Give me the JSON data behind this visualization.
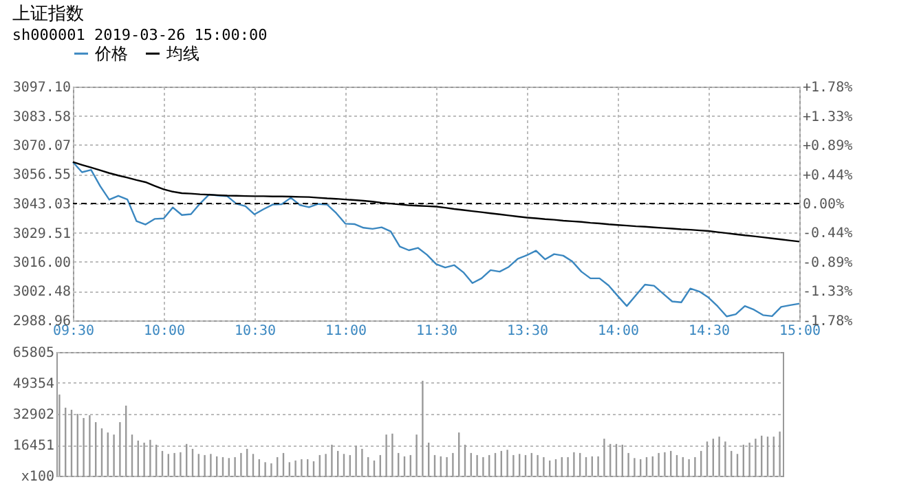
{
  "chart_data": [
    {
      "type": "line",
      "title": "上证指数",
      "subtitle": "sh000001",
      "annotations": [
        "2019-03-26 15:00:00"
      ],
      "categories": [
        "09:30",
        null,
        null,
        null,
        null,
        null,
        null,
        null,
        null,
        null,
        "10:00",
        null,
        null,
        null,
        null,
        null,
        null,
        null,
        null,
        null,
        "10:30",
        null,
        null,
        null,
        null,
        null,
        null,
        null,
        null,
        null,
        "11:00",
        null,
        null,
        null,
        null,
        null,
        null,
        null,
        null,
        null,
        "11:30",
        null,
        null,
        null,
        null,
        null,
        null,
        null,
        null,
        null,
        "13:30",
        null,
        null,
        null,
        null,
        null,
        null,
        null,
        null,
        null,
        "14:00",
        null,
        null,
        null,
        null,
        null,
        null,
        null,
        null,
        null,
        "14:30",
        null,
        null,
        null,
        null,
        null,
        null,
        null,
        null,
        null,
        "15:00"
      ],
      "ylim": [
        2988.96,
        3097.1
      ],
      "yticks": [
        {
          "value": 2988.96,
          "label": "2988.96"
        },
        {
          "value": 3002.48,
          "label": "3002.48"
        },
        {
          "value": 3016,
          "label": "3016.00"
        },
        {
          "value": 3029.51,
          "label": "3029.51"
        },
        {
          "value": 3043.03,
          "label": "3043.03"
        },
        {
          "value": 3056.55,
          "label": "3056.55"
        },
        {
          "value": 3070.07,
          "label": "3070.07"
        },
        {
          "value": 3083.58,
          "label": "3083.58"
        },
        {
          "value": 3097.1,
          "label": "3097.10"
        }
      ],
      "y2lim": [
        -1.78,
        1.78
      ],
      "y2ticks": [
        {
          "value": -1.78,
          "label": "-1.78%"
        },
        {
          "value": -1.33,
          "label": "-1.33%"
        },
        {
          "value": -0.89,
          "label": "-0.89%"
        },
        {
          "value": -0.44,
          "label": "-0.44%"
        },
        {
          "value": 0,
          "label": "0.00%"
        },
        {
          "value": 0.44,
          "label": "+0.44%"
        },
        {
          "value": 0.89,
          "label": "+0.89%"
        },
        {
          "value": 1.33,
          "label": "+1.33%"
        },
        {
          "value": 1.78,
          "label": "+1.78%"
        }
      ],
      "grid": true,
      "legend": "top",
      "ref_lines": [
        {
          "axis": "y",
          "value": 3043.03,
          "line_style": "dashed",
          "color": "#000000"
        }
      ],
      "series": [
        {
          "name": "价格",
          "color": "#3a87c0",
          "values": [
            3062.2,
            3057.5,
            3058.6,
            3051.1,
            3044.8,
            3046.6,
            3044.9,
            3034.9,
            3033.3,
            3035.9,
            3036.1,
            3041.2,
            3037.7,
            3038.1,
            3043.0,
            3047.2,
            3046.7,
            3046.4,
            3042.9,
            3041.8,
            3038.0,
            3040.4,
            3042.5,
            3042.7,
            3045.7,
            3042.3,
            3041.3,
            3042.8,
            3042.5,
            3038.6,
            3033.7,
            3033.5,
            3031.8,
            3031.3,
            3032.0,
            3030.1,
            3023.1,
            3021.4,
            3022.5,
            3019.3,
            3015.0,
            3013.4,
            3014.5,
            3011.2,
            3006.2,
            3008.4,
            3012.2,
            3011.5,
            3013.7,
            3017.5,
            3019.1,
            3021.2,
            3017.2,
            3019.6,
            3018.9,
            3016.2,
            3011.5,
            3008.4,
            3008.4,
            3005.1,
            3000.3,
            2995.6,
            3000.6,
            3005.5,
            3005.0,
            3001.3,
            2997.7,
            2997.3,
            3003.7,
            3002.3,
            2999.5,
            2995.5,
            2990.8,
            2991.8,
            2995.6,
            2993.9,
            2991.4,
            2990.9,
            2995.2,
            2996.0,
            2996.7
          ]
        },
        {
          "name": "均线",
          "color": "#000000",
          "values": [
            3062.2,
            3060.9,
            3059.7,
            3058.4,
            3057.1,
            3056.0,
            3055.0,
            3053.9,
            3052.9,
            3051.2,
            3049.6,
            3048.5,
            3047.8,
            3047.6,
            3047.3,
            3047.1,
            3046.9,
            3046.7,
            3046.6,
            3046.5,
            3046.4,
            3046.4,
            3046.3,
            3046.3,
            3046.2,
            3046.1,
            3046.0,
            3045.7,
            3045.4,
            3045.2,
            3044.9,
            3044.6,
            3044.3,
            3043.9,
            3043.4,
            3043.0,
            3042.6,
            3042.2,
            3042.0,
            3041.8,
            3041.6,
            3041.1,
            3040.5,
            3040.0,
            3039.5,
            3039.0,
            3038.5,
            3038.0,
            3037.5,
            3037.0,
            3036.5,
            3036.2,
            3035.8,
            3035.5,
            3035.1,
            3034.8,
            3034.5,
            3034.1,
            3033.8,
            3033.4,
            3033.1,
            3032.8,
            3032.5,
            3032.3,
            3032.0,
            3031.7,
            3031.4,
            3031.1,
            3030.9,
            3030.6,
            3030.3,
            3029.8,
            3029.3,
            3028.8,
            3028.3,
            3027.9,
            3027.4,
            3026.9,
            3026.4,
            3025.9,
            3025.4
          ]
        }
      ]
    },
    {
      "type": "bar",
      "color": "#999999",
      "grid": "y",
      "categories": [
        null,
        null,
        null,
        null,
        null,
        null,
        null,
        null,
        null,
        null,
        null,
        null,
        null,
        null,
        null,
        null,
        null,
        null,
        null,
        null,
        null,
        null,
        null,
        null,
        null,
        null,
        null,
        null,
        null,
        null,
        null,
        null,
        null,
        null,
        null,
        null,
        null,
        null,
        null,
        null,
        null,
        null,
        null,
        null,
        null,
        null,
        null,
        null,
        null,
        null,
        null,
        null,
        null,
        null,
        null,
        null,
        null,
        null,
        null,
        null,
        null,
        null,
        null,
        null,
        null,
        null,
        null,
        null,
        null,
        null,
        null,
        null,
        null,
        null,
        null,
        null,
        null,
        null,
        null,
        null,
        null,
        null,
        null,
        null,
        null,
        null,
        null,
        null,
        null,
        null,
        null,
        null,
        null,
        null,
        null,
        null,
        null,
        null,
        null,
        null,
        null,
        null,
        null,
        null,
        null,
        null,
        null,
        null,
        null,
        null,
        null,
        null,
        null,
        null,
        null,
        null,
        null,
        null,
        null,
        null
      ],
      "values": [
        43200,
        36200,
        35100,
        32900,
        30700,
        32200,
        28500,
        25200,
        23000,
        21900,
        28500,
        37300,
        21900,
        18700,
        17600,
        19100,
        16500,
        13200,
        11600,
        12100,
        12500,
        16900,
        14300,
        11600,
        11000,
        11600,
        10300,
        9900,
        9400,
        9900,
        12100,
        14300,
        11600,
        8800,
        7200,
        6600,
        9900,
        12100,
        7200,
        8100,
        8800,
        8800,
        7700,
        11000,
        11600,
        16500,
        13200,
        11600,
        11000,
        16000,
        14300,
        9900,
        8100,
        11000,
        21900,
        22400,
        12100,
        10300,
        11000,
        21900,
        50500,
        17600,
        11000,
        10300,
        9900,
        12100,
        23000,
        16500,
        12100,
        11000,
        9900,
        11000,
        12100,
        13200,
        13800,
        11000,
        11600,
        11000,
        12100,
        11000,
        9900,
        8100,
        8800,
        9900,
        9900,
        12500,
        12100,
        9900,
        10300,
        10300,
        19700,
        16900,
        16900,
        16500,
        12100,
        9400,
        8800,
        9900,
        10300,
        12100,
        12500,
        13200,
        11000,
        9900,
        8800,
        9900,
        13200,
        18200,
        19700,
        20800,
        18200,
        13200,
        11600,
        16500,
        17600,
        19700,
        21300,
        20800,
        20800,
        23500
      ],
      "ylim": [
        0,
        65805
      ],
      "yticks": [
        {
          "value": 0,
          "label": "x100"
        },
        16451,
        32902,
        49354,
        65805
      ]
    }
  ]
}
